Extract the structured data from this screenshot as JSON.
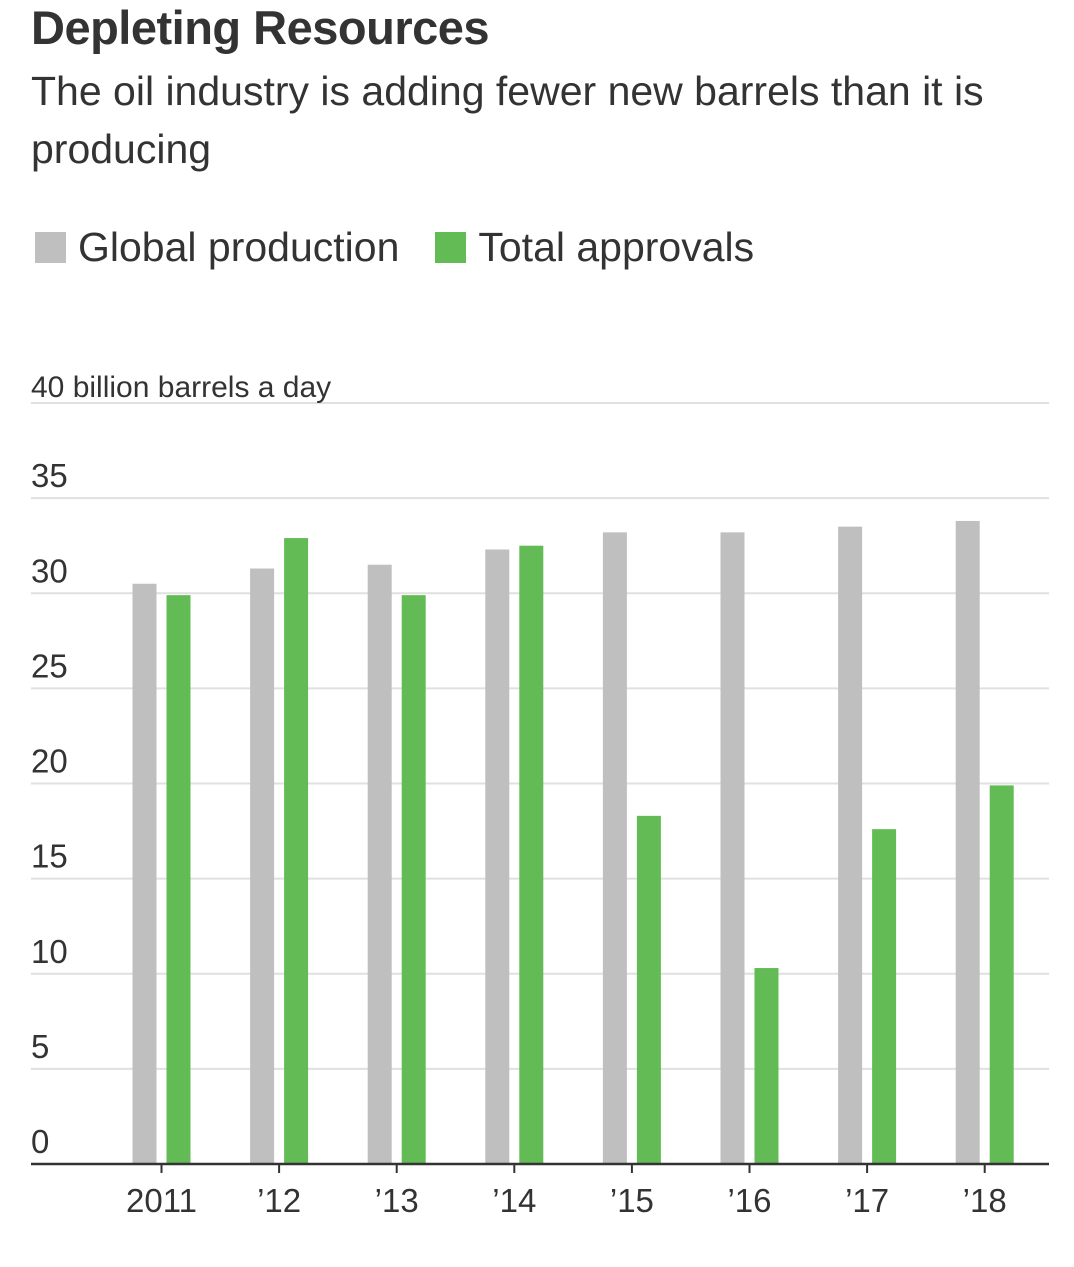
{
  "chart_data": {
    "type": "bar",
    "title": "Depleting Resources",
    "subtitle": "The oil industry is adding fewer new barrels than it is producing",
    "unit_label": "40 billion barrels a day",
    "categories": [
      "2011",
      "’12",
      "’13",
      "’14",
      "’15",
      "’16",
      "’17",
      "’18"
    ],
    "series": [
      {
        "name": "Global production",
        "color": "#bfbfbf",
        "values": [
          30.5,
          31.3,
          31.5,
          32.3,
          33.2,
          33.2,
          33.5,
          33.8
        ]
      },
      {
        "name": "Total approvals",
        "color": "#63bb55",
        "values": [
          29.9,
          32.9,
          29.9,
          32.5,
          18.3,
          10.3,
          17.6,
          19.9
        ]
      }
    ],
    "yticks": [
      "0",
      "5",
      "10",
      "15",
      "20",
      "25",
      "30",
      "35"
    ],
    "ylim": [
      0,
      40
    ],
    "xlabel": "",
    "ylabel": "",
    "grid": true,
    "legend_position": "top-left"
  }
}
